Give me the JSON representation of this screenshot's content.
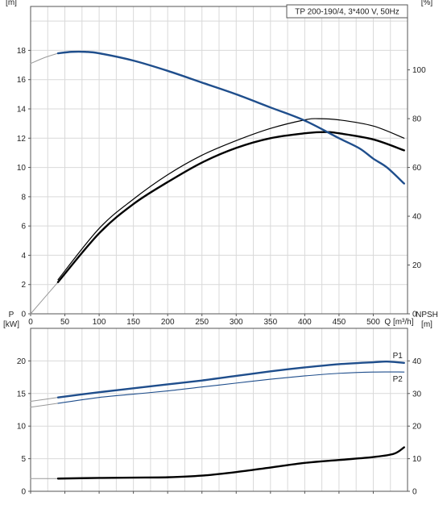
{
  "chart_data": [
    {
      "type": "line",
      "title": "TP 200-190/4, 3*400 V, 50Hz",
      "xlabel": "Q [m³/h]",
      "ylabel": "H [m]",
      "y2label": "eta [%]",
      "xlim": [
        0,
        550
      ],
      "ylim": [
        0,
        21
      ],
      "y2lim": [
        0,
        126
      ],
      "grid": true,
      "x_ticks": [
        0,
        50,
        100,
        150,
        200,
        250,
        300,
        350,
        400,
        450,
        500
      ],
      "y_ticks": [
        0,
        2,
        4,
        6,
        8,
        10,
        12,
        14,
        16,
        18
      ],
      "y2_ticks": [
        0,
        20,
        40,
        60,
        80,
        100
      ],
      "series": [
        {
          "id": "H",
          "axis": "left",
          "style": "bold-blue",
          "x": [
            40,
            60,
            80,
            100,
            150,
            200,
            250,
            300,
            350,
            400,
            450,
            480,
            500,
            520,
            545
          ],
          "y": [
            17.8,
            17.9,
            17.9,
            17.8,
            17.3,
            16.6,
            15.8,
            15.0,
            14.1,
            13.2,
            12.0,
            11.3,
            10.6,
            10.0,
            8.9
          ]
        },
        {
          "id": "H-ext",
          "axis": "left",
          "style": "thin-gray",
          "x": [
            0,
            20,
            40
          ],
          "y": [
            17.1,
            17.5,
            17.8
          ]
        },
        {
          "id": "eta-pump",
          "axis": "right",
          "style": "thin-black",
          "x": [
            40,
            100,
            150,
            200,
            250,
            300,
            350,
            400,
            420,
            450,
            500,
            545
          ],
          "y": [
            14,
            35,
            47,
            57,
            65,
            71,
            76,
            79.5,
            80,
            79.5,
            77,
            72
          ]
        },
        {
          "id": "eta-total",
          "axis": "right",
          "style": "bold-black",
          "x": [
            40,
            100,
            150,
            200,
            250,
            300,
            350,
            400,
            430,
            450,
            500,
            545
          ],
          "y": [
            13,
            33,
            45,
            54,
            62,
            68,
            72,
            74,
            74.5,
            74,
            71.5,
            67
          ]
        },
        {
          "id": "eta-ext",
          "axis": "right",
          "style": "thin-gray",
          "x": [
            0,
            40
          ],
          "y": [
            0,
            13
          ]
        }
      ]
    },
    {
      "type": "line",
      "xlabel": "",
      "ylabel": "P [kW]",
      "y2label": "NPSH [m]",
      "xlim": [
        0,
        550
      ],
      "ylim": [
        0,
        25
      ],
      "y2lim": [
        0,
        50
      ],
      "grid": true,
      "x_ticks": [
        0,
        50,
        100,
        150,
        200,
        250,
        300,
        350,
        400,
        450,
        500
      ],
      "y_ticks": [
        0,
        5,
        10,
        15,
        20
      ],
      "y2_ticks": [
        0,
        10,
        20,
        30,
        40
      ],
      "series": [
        {
          "id": "P1",
          "name": "P1",
          "axis": "left",
          "style": "bold-blue",
          "x": [
            40,
            100,
            150,
            200,
            250,
            300,
            350,
            400,
            450,
            500,
            520,
            545
          ],
          "y": [
            14.4,
            15.2,
            15.8,
            16.4,
            17.0,
            17.7,
            18.4,
            19.0,
            19.5,
            19.8,
            19.9,
            19.7
          ]
        },
        {
          "id": "P1-ext",
          "axis": "left",
          "style": "thin-gray",
          "x": [
            0,
            40
          ],
          "y": [
            13.8,
            14.4
          ]
        },
        {
          "id": "P2",
          "name": "P2",
          "axis": "left",
          "style": "thin-blue",
          "x": [
            40,
            100,
            150,
            200,
            250,
            300,
            350,
            400,
            450,
            500,
            545
          ],
          "y": [
            13.5,
            14.4,
            14.9,
            15.4,
            16.0,
            16.6,
            17.2,
            17.7,
            18.1,
            18.3,
            18.3
          ]
        },
        {
          "id": "P2-ext",
          "axis": "left",
          "style": "thin-gray",
          "x": [
            0,
            40
          ],
          "y": [
            12.9,
            13.5
          ]
        },
        {
          "id": "NPSH",
          "axis": "right",
          "style": "bold-black",
          "x": [
            40,
            100,
            150,
            200,
            250,
            300,
            350,
            400,
            450,
            500,
            530,
            545
          ],
          "y": [
            3.9,
            4.1,
            4.2,
            4.3,
            4.8,
            5.9,
            7.3,
            8.7,
            9.6,
            10.5,
            11.5,
            13.5
          ]
        },
        {
          "id": "NPSH-ext",
          "axis": "right",
          "style": "thin-gray",
          "x": [
            0,
            40
          ],
          "y": [
            3.9,
            3.9
          ]
        }
      ]
    }
  ]
}
